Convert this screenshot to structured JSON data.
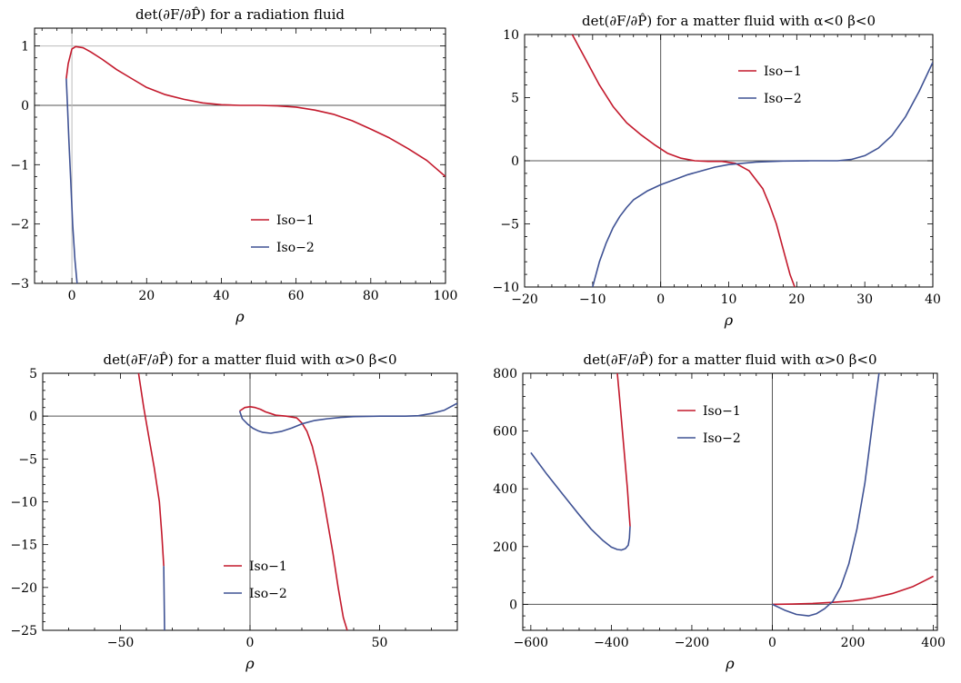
{
  "colors": {
    "iso1": "#c3192c",
    "iso2": "#3f5294",
    "frame": "#000000",
    "zero": "#555555",
    "ref": "#bbbbbb"
  },
  "chart_data": [
    {
      "type": "line",
      "title": "det(∂F/∂P̂) for a radiation fluid",
      "xlabel": "ρ",
      "xlim": [
        -10,
        100
      ],
      "ylim": [
        -3,
        1.3
      ],
      "xticks": [
        0,
        20,
        40,
        60,
        80,
        100
      ],
      "xtick_labels": [
        "0",
        "20",
        "40",
        "60",
        "80",
        "100"
      ],
      "yticks": [
        1,
        0,
        -1,
        -2,
        -3
      ],
      "ytick_labels": [
        "1",
        "0",
        "−1",
        "−2",
        "−3"
      ],
      "hlines": [
        1
      ],
      "vlines": [
        0
      ],
      "legend": [
        "Iso−1",
        "Iso−2"
      ],
      "legend_position": "bottom-center",
      "series": [
        {
          "name": "Iso−1",
          "x": [
            -1.5,
            -1,
            0,
            1,
            3,
            5,
            8,
            12,
            16,
            20,
            25,
            30,
            35,
            40,
            45,
            50,
            55,
            60,
            65,
            70,
            75,
            80,
            85,
            90,
            95,
            100
          ],
          "y": [
            0.45,
            0.7,
            0.95,
            0.99,
            0.97,
            0.9,
            0.78,
            0.6,
            0.45,
            0.3,
            0.18,
            0.1,
            0.04,
            0.01,
            0.0,
            0.0,
            -0.01,
            -0.03,
            -0.08,
            -0.15,
            -0.26,
            -0.4,
            -0.55,
            -0.73,
            -0.93,
            -1.2
          ]
        },
        {
          "name": "Iso−2",
          "x": [
            -1.5,
            -1.2,
            -0.8,
            -0.3,
            0.2,
            0.8,
            1.4
          ],
          "y": [
            0.45,
            0.0,
            -0.6,
            -1.3,
            -2.0,
            -2.6,
            -3.0
          ]
        }
      ]
    },
    {
      "type": "line",
      "title": "det(∂F/∂P̂) for a matter fluid with α<0 β<0",
      "xlabel": "ρ",
      "xlim": [
        -20,
        40
      ],
      "ylim": [
        -10,
        10
      ],
      "xticks": [
        -20,
        -10,
        0,
        10,
        20,
        30,
        40
      ],
      "xtick_labels": [
        "−20",
        "−10",
        "0",
        "10",
        "20",
        "30",
        "40"
      ],
      "yticks": [
        10,
        5,
        0,
        -5,
        -10
      ],
      "ytick_labels": [
        "10",
        "5",
        "0",
        "−5",
        "−10"
      ],
      "vlines": [
        0
      ],
      "legend": [
        "Iso−1",
        "Iso−2"
      ],
      "legend_position": "top-center",
      "series": [
        {
          "name": "Iso−1",
          "x": [
            -13,
            -11,
            -9,
            -7,
            -5,
            -3,
            -1,
            1,
            3,
            5,
            7,
            9,
            11,
            13,
            15,
            16,
            17,
            18,
            19,
            19.7
          ],
          "y": [
            10,
            8,
            6,
            4.3,
            3.0,
            2.1,
            1.3,
            0.6,
            0.2,
            0.0,
            -0.05,
            -0.05,
            -0.2,
            -0.8,
            -2.2,
            -3.5,
            -5.0,
            -7.0,
            -9.0,
            -10
          ]
        },
        {
          "name": "Iso−2",
          "x": [
            -10,
            -9,
            -8,
            -7,
            -6,
            -5,
            -4,
            -2,
            0,
            2,
            4,
            6,
            8,
            10,
            14,
            18,
            22,
            26,
            28,
            30,
            32,
            34,
            36,
            38,
            40
          ],
          "y": [
            -10,
            -8.0,
            -6.5,
            -5.3,
            -4.4,
            -3.7,
            -3.1,
            -2.4,
            -1.9,
            -1.5,
            -1.1,
            -0.8,
            -0.5,
            -0.3,
            -0.1,
            -0.02,
            0.0,
            0.0,
            0.1,
            0.4,
            1.0,
            2.0,
            3.5,
            5.5,
            7.8
          ]
        }
      ]
    },
    {
      "type": "line",
      "title": "det(∂F/∂P̂) for a matter fluid with α>0 β<0",
      "xlabel": "ρ",
      "xlim": [
        -80,
        80
      ],
      "ylim": [
        -25,
        5
      ],
      "xticks": [
        -50,
        0,
        50
      ],
      "xtick_labels": [
        "−50",
        "0",
        "50"
      ],
      "yticks": [
        5,
        0,
        -5,
        -10,
        -15,
        -20,
        -25
      ],
      "ytick_labels": [
        "5",
        "0",
        "−5",
        "−10",
        "−15",
        "−20",
        "−25"
      ],
      "vlines": [
        0
      ],
      "legend": [
        "Iso−1",
        "Iso−2"
      ],
      "legend_position": "bottom-center",
      "series": [
        {
          "name": "Iso−1",
          "x": [
            -43,
            -41,
            -39,
            -37,
            -35,
            -34,
            -33.3
          ],
          "y": [
            5,
            1,
            -2.5,
            -6,
            -10,
            -14,
            -17.5
          ]
        },
        {
          "name": "Iso−2",
          "x": [
            -33.3,
            -33.2,
            -33.1,
            -33.0
          ],
          "y": [
            -17.5,
            -20,
            -22.5,
            -25
          ]
        },
        {
          "name": "Iso−1",
          "x": [
            -4,
            -2,
            0,
            2,
            4,
            6,
            8,
            10,
            14,
            18,
            20,
            22,
            24,
            26,
            28,
            30,
            32,
            34,
            36,
            37.5
          ],
          "y": [
            0.6,
            1.0,
            1.1,
            1.0,
            0.8,
            0.5,
            0.3,
            0.1,
            0.0,
            -0.2,
            -0.8,
            -1.8,
            -3.5,
            -6,
            -9,
            -12.5,
            -16,
            -20,
            -23.5,
            -25
          ]
        },
        {
          "name": "Iso−2",
          "x": [
            -4,
            -3,
            -1,
            1,
            3,
            5,
            8,
            12,
            16,
            20,
            25,
            30,
            35,
            40,
            45,
            50,
            55,
            60,
            65,
            70,
            75,
            80
          ],
          "y": [
            0.6,
            -0.3,
            -0.9,
            -1.4,
            -1.7,
            -1.9,
            -2.0,
            -1.8,
            -1.4,
            -0.9,
            -0.5,
            -0.3,
            -0.15,
            -0.06,
            -0.02,
            0.0,
            0.0,
            0.0,
            0.05,
            0.3,
            0.7,
            1.5
          ]
        }
      ]
    },
    {
      "type": "line",
      "title": "det(∂F/∂P̂) for a matter fluid with α>0 β<0",
      "xlabel": "ρ",
      "xlim": [
        -620,
        410
      ],
      "ylim": [
        -90,
        800
      ],
      "xticks": [
        -600,
        -400,
        -200,
        0,
        200,
        400
      ],
      "xtick_labels": [
        "−600",
        "−400",
        "−200",
        "0",
        "200",
        "400"
      ],
      "yticks": [
        800,
        600,
        400,
        200,
        0
      ],
      "ytick_labels": [
        "800",
        "600",
        "400",
        "200",
        "0"
      ],
      "vlines": [
        0
      ],
      "legend": [
        "Iso−1",
        "Iso−2"
      ],
      "legend_position": "top-center",
      "series": [
        {
          "name": "Iso−1",
          "x": [
            -385,
            -380,
            -375,
            -370,
            -365,
            -360,
            -357,
            -355,
            -354,
            -353.5
          ],
          "y": [
            800,
            720,
            640,
            560,
            480,
            400,
            340,
            300,
            280,
            270
          ]
        },
        {
          "name": "Iso−2",
          "x": [
            -600,
            -560,
            -520,
            -480,
            -450,
            -420,
            -400,
            -385,
            -375,
            -365,
            -358,
            -355,
            -353.5
          ],
          "y": [
            525,
            450,
            380,
            310,
            260,
            220,
            198,
            190,
            188,
            193,
            205,
            230,
            270
          ]
        },
        {
          "name": "Iso−1",
          "x": [
            0,
            50,
            100,
            150,
            200,
            250,
            300,
            350,
            400
          ],
          "y": [
            0,
            1,
            3,
            7,
            12,
            22,
            38,
            62,
            97
          ]
        },
        {
          "name": "Iso−2",
          "x": [
            0,
            30,
            60,
            90,
            110,
            130,
            150,
            170,
            190,
            210,
            230,
            250,
            265
          ],
          "y": [
            0,
            -20,
            -35,
            -40,
            -32,
            -15,
            10,
            60,
            140,
            260,
            420,
            640,
            800
          ]
        }
      ]
    }
  ]
}
